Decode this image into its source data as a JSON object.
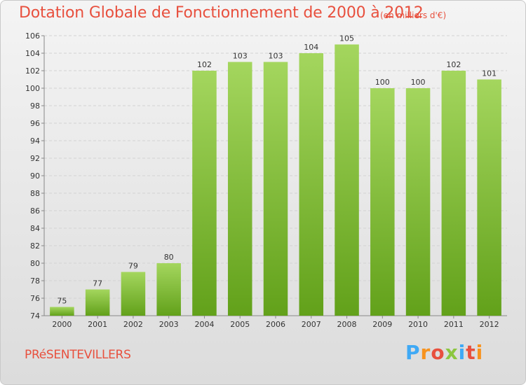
{
  "header": {
    "title": "Dotation Globale de Fonctionnement de 2000 à 2012",
    "subtitle": "(en milliers d'€)"
  },
  "footer": {
    "city": "PRéSENTEVILLERS",
    "brand": "Proxiti",
    "brand_colors": [
      "#3fa9f5",
      "#f7931e",
      "#e8503e",
      "#8cc63f",
      "#3fa9f5",
      "#e8503e",
      "#f7931e"
    ]
  },
  "chart_data": {
    "type": "bar",
    "title": "Dotation Globale de Fonctionnement de 2000 à 2012",
    "subtitle": "(en milliers d'€)",
    "categories": [
      "2000",
      "2001",
      "2002",
      "2003",
      "2004",
      "2005",
      "2006",
      "2007",
      "2008",
      "2009",
      "2010",
      "2011",
      "2012"
    ],
    "values": [
      75,
      77,
      79,
      80,
      102,
      103,
      103,
      104,
      105,
      100,
      100,
      102,
      101
    ],
    "ylim": [
      74,
      106
    ],
    "yticks": [
      74,
      76,
      78,
      80,
      82,
      84,
      86,
      88,
      90,
      92,
      94,
      96,
      98,
      100,
      102,
      104,
      106
    ],
    "xlabel": "",
    "ylabel": "",
    "grid": true,
    "bar_color": "#7ab828",
    "bar_color_light": "#a4d65e"
  }
}
